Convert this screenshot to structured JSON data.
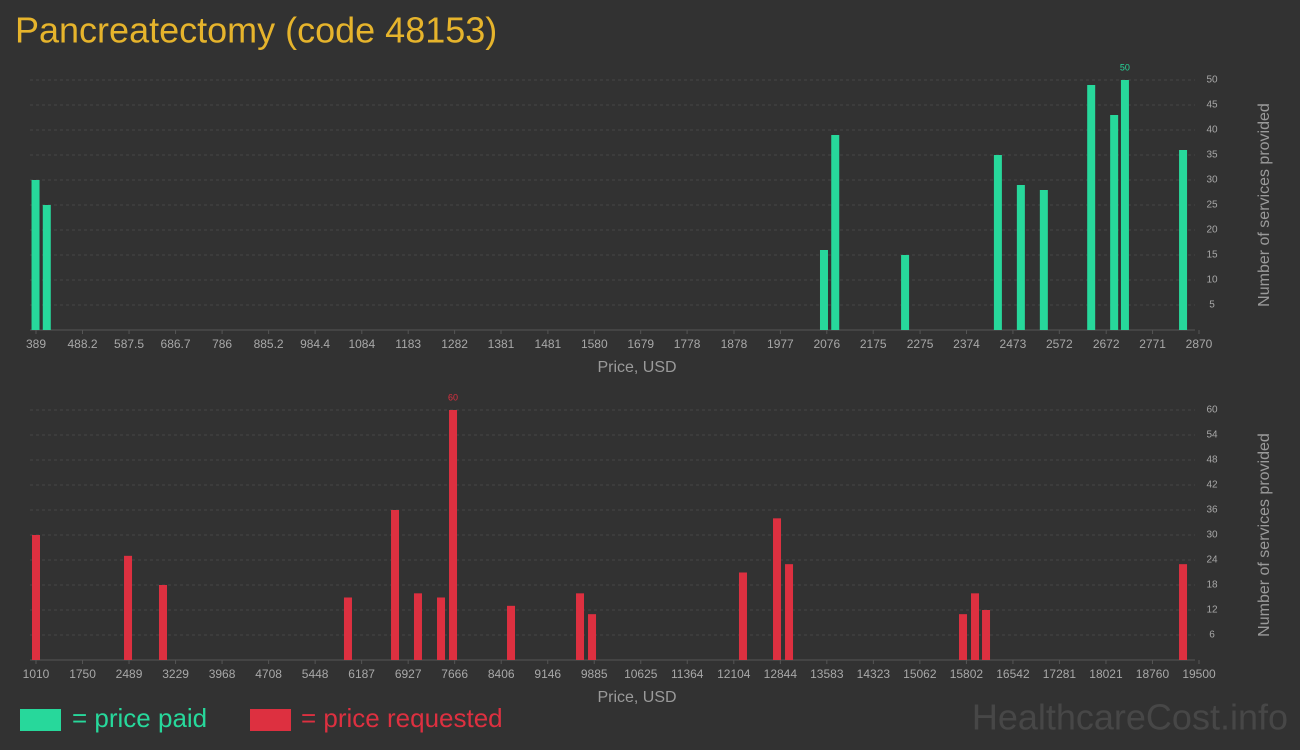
{
  "title": "Pancreatectomy (code 48153)",
  "watermark": "HealthcareCost.info",
  "chart_data": [
    {
      "type": "bar",
      "x": [
        388,
        412,
        2070,
        2094,
        2243,
        2441,
        2490,
        2539,
        2640,
        2689,
        2712,
        2836
      ],
      "series": [
        {
          "name": "= price paid",
          "color": "#27d89b",
          "values": [
            30,
            25,
            16,
            39,
            15,
            35,
            29,
            28,
            49,
            43,
            50,
            36
          ]
        }
      ],
      "xlim": [
        389,
        2870
      ],
      "xticks": [
        389,
        488.2,
        587.5,
        686.7,
        786,
        885.2,
        984.4,
        1084,
        1183,
        1282,
        1381,
        1481,
        1580,
        1679,
        1778,
        1878,
        1977,
        2076,
        2175,
        2275,
        2374,
        2473,
        2572,
        2672,
        2771,
        2870
      ],
      "ylim": [
        0,
        50
      ],
      "yticks": [
        5,
        10,
        15,
        20,
        25,
        30,
        35,
        40,
        45,
        50
      ],
      "x_label": "Price, USD",
      "y_label": "Number of services provided",
      "grid": true
    },
    {
      "type": "bar",
      "x": [
        1010,
        2473,
        3029,
        5970,
        6718,
        7083,
        7449,
        7640,
        8562,
        9659,
        9850,
        12250,
        12791,
        12982,
        15748,
        15939,
        16114,
        19246
      ],
      "series": [
        {
          "name": "= price requested",
          "color": "#dd3040",
          "values": [
            30,
            25,
            18,
            15,
            36,
            16,
            15,
            60,
            13,
            16,
            11,
            21,
            34,
            23,
            11,
            16,
            12,
            23
          ]
        }
      ],
      "xlim": [
        1010,
        19500
      ],
      "xticks": [
        1010,
        1750,
        2489,
        3229,
        3968,
        4708,
        5448,
        6187,
        6927,
        7666,
        8406,
        9146,
        9885,
        10625,
        11364,
        12104,
        12844,
        13583,
        14323,
        15062,
        15802,
        16542,
        17281,
        18021,
        18760,
        19500
      ],
      "ylim": [
        0,
        60
      ],
      "yticks": [
        6,
        12,
        18,
        24,
        30,
        36,
        42,
        48,
        54,
        60
      ],
      "x_label": "Price, USD",
      "y_label": "Number of services provided",
      "grid": true
    }
  ]
}
